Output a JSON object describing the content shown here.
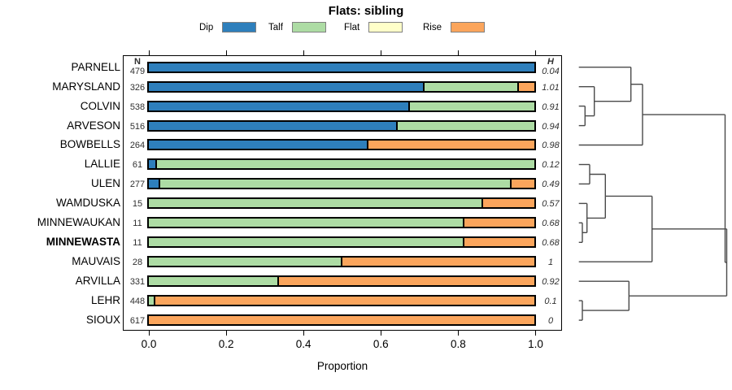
{
  "chart_data": {
    "type": "stacked-bar-horizontal-with-dendrogram",
    "title": "Flats: sibling",
    "xlabel": "Proportion",
    "xlim": [
      0.0,
      1.0
    ],
    "xtick_labels": [
      "0.0",
      "0.2",
      "0.4",
      "0.6",
      "0.8",
      "1.0"
    ],
    "xtick_values": [
      0.0,
      0.2,
      0.4,
      0.6,
      0.8,
      1.0
    ],
    "n_header": "N",
    "h_header": "H",
    "legend": [
      {
        "key": "dip",
        "label": "Dip",
        "color": "#2E7FBC"
      },
      {
        "key": "talf",
        "label": "Talf",
        "color": "#ADDCA4"
      },
      {
        "key": "flat",
        "label": "Flat",
        "color": "#FFFFC9"
      },
      {
        "key": "rise",
        "label": "Rise",
        "color": "#FBA55C"
      }
    ],
    "rows": [
      {
        "label": "PARNELL",
        "n": "479",
        "h": "0.04",
        "bold": false,
        "segments": [
          [
            "dip",
            1.0
          ]
        ]
      },
      {
        "label": "MARYSLAND",
        "n": "326",
        "h": "1.01",
        "bold": false,
        "segments": [
          [
            "dip",
            0.718
          ],
          [
            "talf",
            0.242
          ],
          [
            "rise",
            0.04
          ]
        ]
      },
      {
        "label": "COLVIN",
        "n": "538",
        "h": "0.91",
        "bold": false,
        "segments": [
          [
            "dip",
            0.675
          ],
          [
            "talf",
            0.325
          ]
        ]
      },
      {
        "label": "ARVESON",
        "n": "516",
        "h": "0.94",
        "bold": false,
        "segments": [
          [
            "dip",
            0.645
          ],
          [
            "talf",
            0.355
          ]
        ]
      },
      {
        "label": "BOWBELLS",
        "n": "264",
        "h": "0.98",
        "bold": false,
        "segments": [
          [
            "dip",
            0.568
          ],
          [
            "rise",
            0.432
          ]
        ]
      },
      {
        "label": "LALLIE",
        "n": "61",
        "h": "0.12",
        "bold": false,
        "segments": [
          [
            "dip",
            0.016
          ],
          [
            "talf",
            0.984
          ]
        ]
      },
      {
        "label": "ULEN",
        "n": "277",
        "h": "0.49",
        "bold": false,
        "segments": [
          [
            "dip",
            0.025
          ],
          [
            "talf",
            0.915
          ],
          [
            "rise",
            0.06
          ]
        ]
      },
      {
        "label": "WAMDUSKA",
        "n": "15",
        "h": "0.57",
        "bold": false,
        "segments": [
          [
            "talf",
            0.867
          ],
          [
            "rise",
            0.133
          ]
        ]
      },
      {
        "label": "MINNEWAUKAN",
        "n": "11",
        "h": "0.68",
        "bold": false,
        "segments": [
          [
            "talf",
            0.818
          ],
          [
            "rise",
            0.182
          ]
        ]
      },
      {
        "label": "MINNEWASTA",
        "n": "11",
        "h": "0.68",
        "bold": true,
        "segments": [
          [
            "talf",
            0.818
          ],
          [
            "rise",
            0.182
          ]
        ]
      },
      {
        "label": "MAUVAIS",
        "n": "28",
        "h": "1",
        "bold": false,
        "segments": [
          [
            "talf",
            0.5
          ],
          [
            "rise",
            0.5
          ]
        ]
      },
      {
        "label": "ARVILLA",
        "n": "331",
        "h": "0.92",
        "bold": false,
        "segments": [
          [
            "talf",
            0.335
          ],
          [
            "rise",
            0.665
          ]
        ]
      },
      {
        "label": "LEHR",
        "n": "448",
        "h": "0.1",
        "bold": false,
        "segments": [
          [
            "talf",
            0.013
          ],
          [
            "rise",
            0.987
          ]
        ]
      },
      {
        "label": "SIOUX",
        "n": "617",
        "h": "0",
        "bold": false,
        "segments": [
          [
            "rise",
            1.0
          ]
        ]
      }
    ],
    "dendrogram": {
      "line_color": "#4a4a4a",
      "segments": [
        [
          711.7,
          82.7,
          775.7,
          82.7
        ],
        [
          711.7,
          106.7,
          730.7,
          106.7
        ],
        [
          711.7,
          130.6,
          719.3,
          130.6
        ],
        [
          711.7,
          154.6,
          719.3,
          154.6
        ],
        [
          711.7,
          178.5,
          790,
          178.5
        ],
        [
          711.7,
          202.5,
          725,
          202.5
        ],
        [
          711.7,
          226.4,
          725,
          226.4
        ],
        [
          711.7,
          250.4,
          721.7,
          250.4
        ],
        [
          711.7,
          274.3,
          716,
          274.3
        ],
        [
          711.7,
          298.3,
          716,
          298.3
        ],
        [
          711.7,
          322.2,
          801.7,
          322.2
        ],
        [
          711.7,
          346.2,
          773.3,
          346.2
        ],
        [
          711.7,
          370.1,
          716,
          370.1
        ],
        [
          711.7,
          394.1,
          716,
          394.1
        ],
        [
          719.3,
          130.6,
          719.3,
          154.6
        ],
        [
          719.3,
          142.6,
          730.7,
          142.6
        ],
        [
          730.7,
          106.7,
          730.7,
          142.6
        ],
        [
          730.7,
          124.7,
          775.7,
          124.7
        ],
        [
          775.7,
          82.7,
          775.7,
          124.7
        ],
        [
          775.7,
          103.7,
          790,
          103.7
        ],
        [
          790,
          103.7,
          790,
          178.5
        ],
        [
          790,
          141.1,
          891.5,
          141.1
        ],
        [
          725,
          202.5,
          725,
          226.4
        ],
        [
          725,
          214.5,
          744.3,
          214.5
        ],
        [
          716,
          274.3,
          716,
          298.3
        ],
        [
          716,
          286.3,
          721.7,
          286.3
        ],
        [
          721.7,
          250.4,
          721.7,
          286.3
        ],
        [
          721.7,
          268.4,
          744.3,
          268.4
        ],
        [
          744.3,
          214.5,
          744.3,
          268.4
        ],
        [
          744.3,
          241.4,
          801.7,
          241.4
        ],
        [
          801.7,
          241.4,
          801.7,
          322.2
        ],
        [
          801.7,
          281.8,
          893.5,
          281.8
        ],
        [
          716,
          370.1,
          716,
          394.1
        ],
        [
          716,
          382.1,
          773.3,
          382.1
        ],
        [
          773.3,
          346.2,
          773.3,
          382.1
        ],
        [
          773.3,
          364.2,
          893.5,
          364.2
        ],
        [
          893.5,
          281.8,
          893.5,
          364.2
        ],
        [
          891.5,
          323,
          893.5,
          323
        ],
        [
          891.5,
          141.1,
          891.5,
          323
        ]
      ]
    }
  }
}
